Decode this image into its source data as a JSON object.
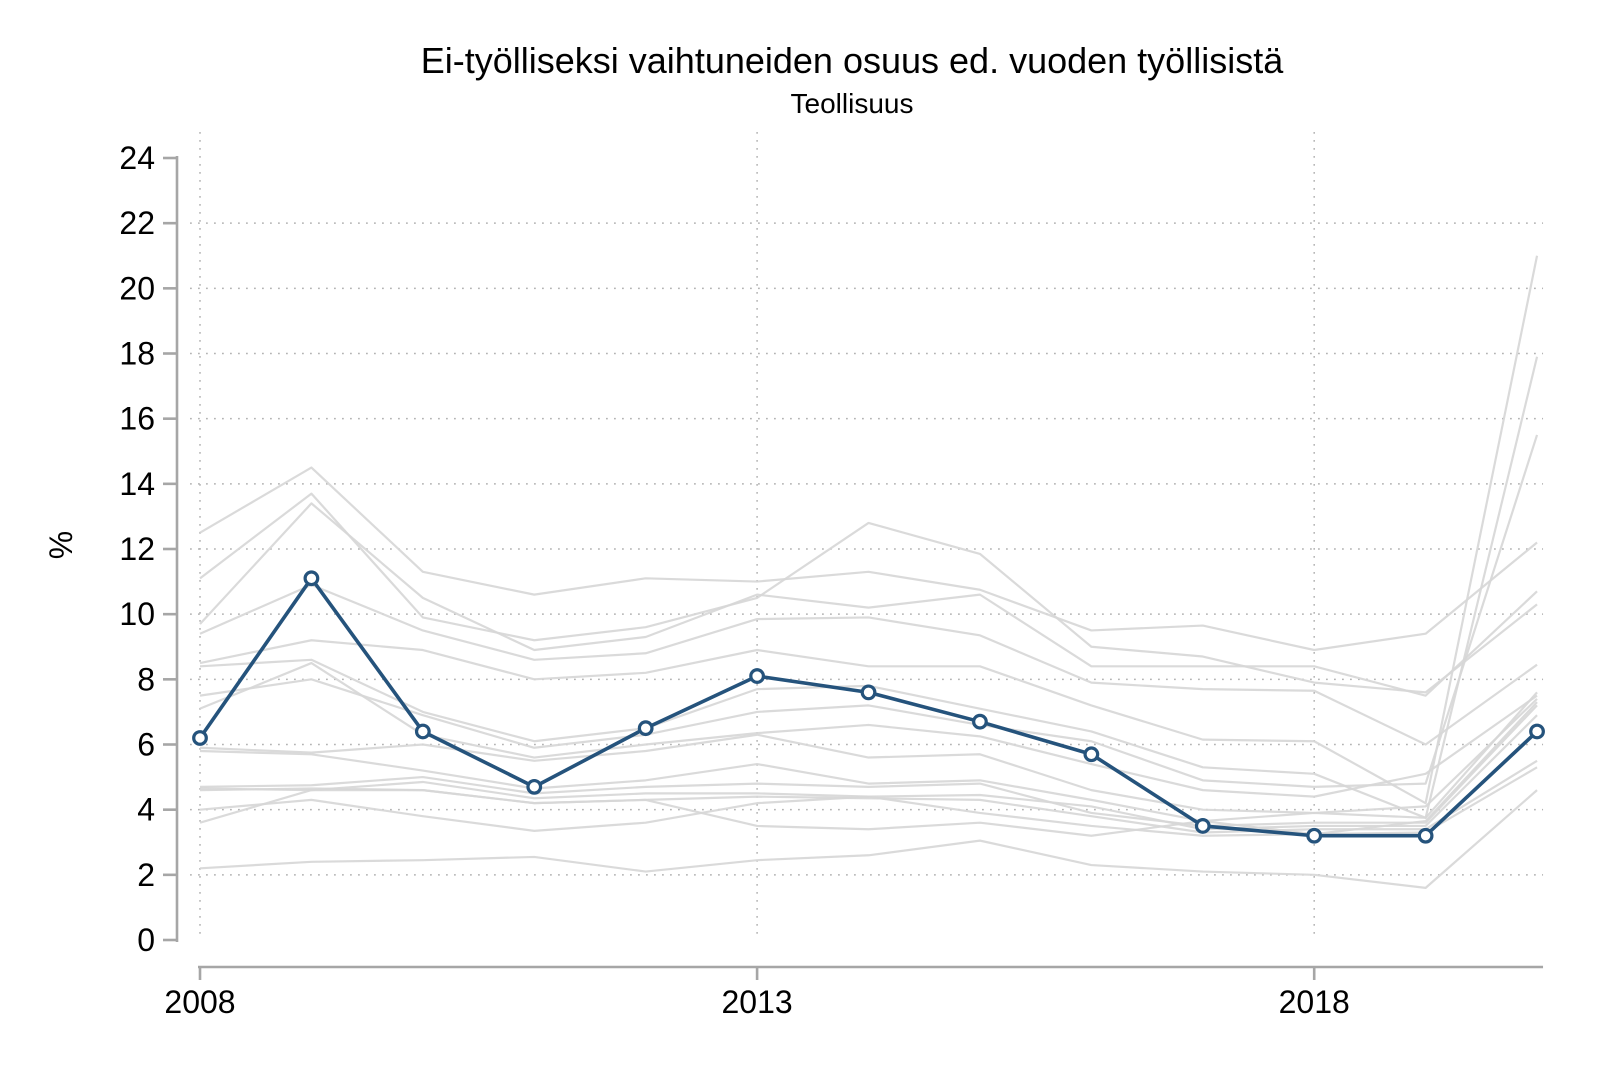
{
  "header": {
    "title": "Ei-työlliseksi vaihtuneiden osuus ed. vuoden työllisistä",
    "subtitle": "Teollisuus"
  },
  "chart_data": {
    "type": "line",
    "title": "Ei-työlliseksi vaihtuneiden osuus ed. vuoden työllisistä",
    "subtitle": "Teollisuus",
    "xlabel": "",
    "ylabel": "%",
    "x": [
      2008,
      2009,
      2010,
      2011,
      2012,
      2013,
      2014,
      2015,
      2016,
      2017,
      2018,
      2019,
      2020
    ],
    "xtick_labeled_years": [
      2008,
      2013,
      2018
    ],
    "yticks": [
      0,
      2,
      4,
      6,
      8,
      10,
      12,
      14,
      16,
      18,
      20,
      22,
      24
    ],
    "ylim": [
      0,
      24
    ],
    "grid": "dotted horizontal gridlines at 2..22, dotted vertical gridlines at labeled years",
    "legend_position": "none",
    "highlight_series": {
      "name": "Teollisuus",
      "marker": "open-circle",
      "color": "#25537c",
      "values": [
        6.2,
        11.1,
        6.4,
        4.7,
        6.5,
        8.1,
        7.6,
        6.7,
        5.7,
        3.5,
        3.2,
        3.2,
        6.4
      ]
    },
    "background_series_color": "#d7d7d7",
    "background_series": [
      {
        "values": [
          12.5,
          14.5,
          11.3,
          10.6,
          11.1,
          11.0,
          11.3,
          10.75,
          9.5,
          9.65,
          8.9,
          9.4,
          12.2
        ]
      },
      {
        "values": [
          11.1,
          13.7,
          9.9,
          9.2,
          9.6,
          10.5,
          12.8,
          11.85,
          9.0,
          8.7,
          7.9,
          7.6,
          10.3
        ]
      },
      {
        "values": [
          9.7,
          13.4,
          10.5,
          8.9,
          9.3,
          10.6,
          10.2,
          10.6,
          8.4,
          8.4,
          8.4,
          7.5,
          10.7
        ]
      },
      {
        "values": [
          9.4,
          10.9,
          9.5,
          8.6,
          8.8,
          9.85,
          9.9,
          9.35,
          7.9,
          7.7,
          7.65,
          6.0,
          8.45
        ]
      },
      {
        "values": [
          8.5,
          9.2,
          8.9,
          8.0,
          8.2,
          8.9,
          8.4,
          8.4,
          7.2,
          6.15,
          6.1,
          4.2,
          21.0
        ]
      },
      {
        "values": [
          8.4,
          8.6,
          7.0,
          6.1,
          6.5,
          7.7,
          7.8,
          7.1,
          6.4,
          5.3,
          5.1,
          3.75,
          17.9
        ]
      },
      {
        "values": [
          7.5,
          8.0,
          6.9,
          5.9,
          6.3,
          7.0,
          7.2,
          6.6,
          6.1,
          4.9,
          4.7,
          4.8,
          15.5
        ]
      },
      {
        "values": [
          7.1,
          8.5,
          6.3,
          5.6,
          6.0,
          6.35,
          6.6,
          6.25,
          5.4,
          4.6,
          4.4,
          5.1,
          7.5
        ]
      },
      {
        "values": [
          5.9,
          5.75,
          6.0,
          5.5,
          5.8,
          6.3,
          5.6,
          5.7,
          4.6,
          4.0,
          3.9,
          4.1,
          7.4
        ]
      },
      {
        "values": [
          5.8,
          5.7,
          5.2,
          4.65,
          4.9,
          5.4,
          4.8,
          4.9,
          4.3,
          3.65,
          3.25,
          3.65,
          7.3
        ]
      },
      {
        "values": [
          4.7,
          4.75,
          5.0,
          4.5,
          4.7,
          4.8,
          4.7,
          4.8,
          3.9,
          3.5,
          3.6,
          3.6,
          7.2
        ]
      },
      {
        "values": [
          4.65,
          4.6,
          4.85,
          4.35,
          4.5,
          4.5,
          4.4,
          4.45,
          4.1,
          3.4,
          3.5,
          3.5,
          6.9
        ]
      },
      {
        "values": [
          4.6,
          4.65,
          4.6,
          4.2,
          4.3,
          4.4,
          4.35,
          4.3,
          3.8,
          3.3,
          3.4,
          3.4,
          5.5
        ]
      },
      {
        "values": [
          4.0,
          4.3,
          3.8,
          3.35,
          3.6,
          4.2,
          4.4,
          3.9,
          3.5,
          3.2,
          3.25,
          3.3,
          5.3
        ]
      },
      {
        "values": [
          3.6,
          4.6,
          4.6,
          4.2,
          4.3,
          3.5,
          3.4,
          3.6,
          3.2,
          3.65,
          3.9,
          3.75,
          7.6
        ]
      },
      {
        "values": [
          2.2,
          2.4,
          2.45,
          2.55,
          2.1,
          2.45,
          2.6,
          3.05,
          2.3,
          2.1,
          2.0,
          1.6,
          4.6
        ]
      }
    ]
  },
  "colors": {
    "background": "#ffffff",
    "axis": "#a6a6a6",
    "gridline": "#b4b4b4",
    "highlight_line": "#25537c",
    "background_line": "#d7d7d7",
    "text": "#000000"
  }
}
